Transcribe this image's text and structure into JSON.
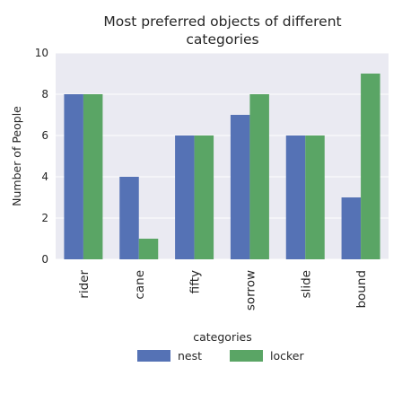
{
  "chart_data": {
    "type": "bar",
    "title_lines": [
      "Most preferred objects of different",
      "categories"
    ],
    "xlabel": "categories",
    "ylabel": "Number of People",
    "categories": [
      "rider",
      "cane",
      "fifty",
      "sorrow",
      "slide",
      "bound"
    ],
    "series": [
      {
        "name": "nest",
        "values": [
          8,
          4,
          6,
          7,
          6,
          3
        ]
      },
      {
        "name": "locker",
        "values": [
          8,
          1,
          6,
          8,
          6,
          9
        ]
      }
    ],
    "ylim": [
      0,
      10
    ],
    "yticks": [
      0,
      2,
      4,
      6,
      8,
      10
    ],
    "grid": true,
    "legend_position": "bottom",
    "colors": {
      "nest": "#5572b5",
      "locker": "#5aa565",
      "background": "#eaeaf2",
      "grid": "#ffffff"
    }
  }
}
